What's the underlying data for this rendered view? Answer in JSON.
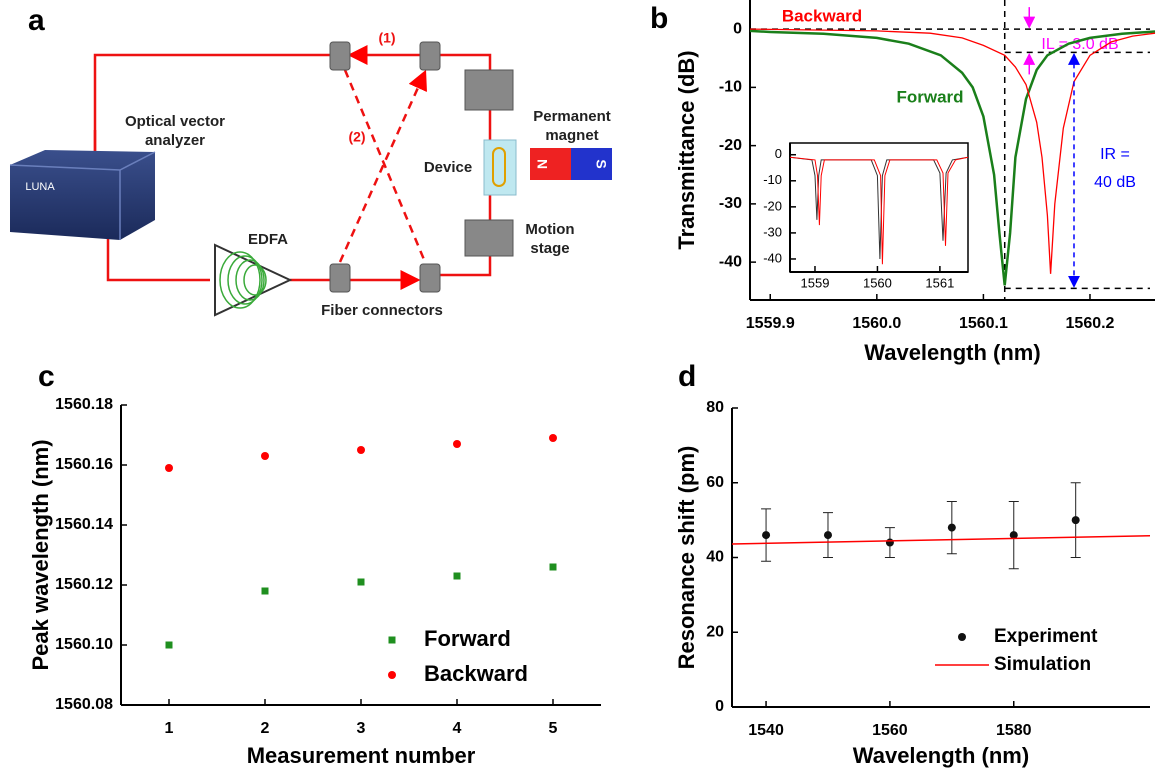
{
  "panel_labels": [
    "a",
    "b",
    "c",
    "d"
  ],
  "diagram": {
    "analyzer": [
      "Optical vector",
      "analyzer"
    ],
    "brand": "LUNA",
    "edfa": "EDFA",
    "connectors": "Fiber connectors",
    "device": "Device",
    "magnet": [
      "Permanent",
      "magnet"
    ],
    "stage": [
      "Motion",
      "stage"
    ],
    "path1": "(1)",
    "path2": "(2)",
    "north": "N",
    "south": "S"
  },
  "chart_data": [
    {
      "type": "line",
      "xlabel": "Wavelength (nm)",
      "ylabel": "Transmittance (dB)",
      "xlim": [
        1559.881,
        1560.261
      ],
      "ylim": [
        -46.5,
        5
      ],
      "xticks": [
        1559.9,
        {
          "value": 1560.0,
          "label": "1560.0"
        },
        1560.1,
        1560.2
      ],
      "yticks": [
        0,
        -10,
        -20,
        -30,
        -40
      ],
      "vline": 1560.12,
      "hlines": [
        0,
        -4,
        -44.5
      ],
      "annotations": [
        "Backward",
        "Forward",
        "IL = 3.0 dB",
        "IR =",
        "40 dB"
      ],
      "series": [
        {
          "name": "Forward",
          "color": "#1a7f1a",
          "x": [
            1559.881,
            1559.9,
            1559.95,
            1560.0,
            1560.03,
            1560.06,
            1560.08,
            1560.09,
            1560.1,
            1560.11,
            1560.115,
            1560.12,
            1560.125,
            1560.13,
            1560.14,
            1560.15,
            1560.16,
            1560.18,
            1560.2,
            1560.23,
            1560.261
          ],
          "values": [
            -0.3,
            -0.5,
            -0.8,
            -1.5,
            -2.5,
            -4.5,
            -7.5,
            -10,
            -15,
            -25,
            -35,
            -44,
            -35,
            -22,
            -12,
            -7,
            -4.5,
            -2.5,
            -1.5,
            -0.8,
            -0.4
          ]
        },
        {
          "name": "Backward",
          "color": "#ff0000",
          "x": [
            1559.881,
            1560.0,
            1560.05,
            1560.08,
            1560.1,
            1560.12,
            1560.13,
            1560.14,
            1560.15,
            1560.155,
            1560.16,
            1560.163,
            1560.167,
            1560.175,
            1560.185,
            1560.2,
            1560.22,
            1560.24,
            1560.261
          ],
          "values": [
            0,
            -0.3,
            -0.7,
            -1.5,
            -2.8,
            -4.5,
            -6.5,
            -9.5,
            -16,
            -22,
            -32,
            -42,
            -30,
            -17,
            -9,
            -4.5,
            -2.2,
            -1.2,
            -0.7
          ]
        }
      ]
    },
    {
      "type": "line",
      "box": true,
      "xlim": [
        1558.6,
        1561.45
      ],
      "ylim": [
        -45,
        4.5
      ],
      "xticks": [
        1559,
        1560,
        1561
      ],
      "yticks": [
        0,
        -10,
        -20,
        -30,
        -40
      ],
      "series": [
        {
          "name": "Forward",
          "color": "#333333",
          "x": [
            1558.6,
            1558.95,
            1559.0,
            1559.03,
            1559.06,
            1559.1,
            1559.9,
            1560.0,
            1560.04,
            1560.08,
            1560.15,
            1560.9,
            1561.0,
            1561.05,
            1561.1,
            1561.2,
            1561.45
          ],
          "values": [
            -1,
            -2,
            -8,
            -25,
            -8,
            -2,
            -2,
            -8,
            -40,
            -8,
            -2,
            -2,
            -7,
            -33,
            -7,
            -2,
            -1
          ]
        },
        {
          "name": "Backward",
          "color": "#ff0000",
          "x": [
            1558.6,
            1559.0,
            1559.04,
            1559.07,
            1559.1,
            1559.15,
            1559.95,
            1560.05,
            1560.08,
            1560.12,
            1560.2,
            1560.95,
            1561.05,
            1561.09,
            1561.13,
            1561.25,
            1561.45
          ],
          "values": [
            -1,
            -2,
            -8,
            -27,
            -8,
            -2,
            -2,
            -8,
            -42,
            -8,
            -2,
            -2,
            -7,
            -35,
            -7,
            -2,
            -1
          ]
        }
      ]
    },
    {
      "type": "scatter",
      "xlabel": "Measurement number",
      "ylabel": "Peak wavelength (nm)",
      "x": [
        1,
        2,
        3,
        4,
        5
      ],
      "xlim": [
        0.5,
        5.5
      ],
      "ylim": [
        1560.08,
        1560.18
      ],
      "xticks": [
        1,
        2,
        3,
        4,
        5
      ],
      "yticks": [
        1560.08,
        {
          "value": 1560.1,
          "label": "1560.10"
        },
        1560.12,
        1560.14,
        1560.16,
        1560.18
      ],
      "legend": "lower right",
      "series": [
        {
          "name": "Forward",
          "color": "#1f8f1f",
          "marker": "square",
          "values": [
            1560.1,
            1560.118,
            1560.121,
            1560.123,
            1560.126
          ]
        },
        {
          "name": "Backward",
          "color": "#ff0000",
          "marker": "circle",
          "values": [
            1560.159,
            1560.163,
            1560.165,
            1560.167,
            1560.169
          ]
        }
      ]
    },
    {
      "type": "scatter",
      "xlabel": "Wavelength (nm)",
      "ylabel": "Resonance shift (pm)",
      "xlim": [
        1534.5,
        1602
      ],
      "ylim": [
        0,
        80
      ],
      "xticks": [
        1540,
        1560,
        1580
      ],
      "yticks": [
        0,
        20,
        40,
        60,
        80
      ],
      "legend": "lower right",
      "series": [
        {
          "name": "Experiment",
          "color": "#111111",
          "marker": "circle",
          "x": [
            1540,
            1550,
            1560,
            1570,
            1580,
            1590
          ],
          "values": [
            46,
            46,
            44,
            48,
            46,
            50
          ],
          "errors": [
            7,
            6,
            4,
            7,
            9,
            10
          ]
        },
        {
          "name": "Simulation",
          "color": "#ff0000",
          "style": "line",
          "x": [
            1534.5,
            1602
          ],
          "values": [
            43.6,
            45.8
          ]
        }
      ]
    }
  ]
}
